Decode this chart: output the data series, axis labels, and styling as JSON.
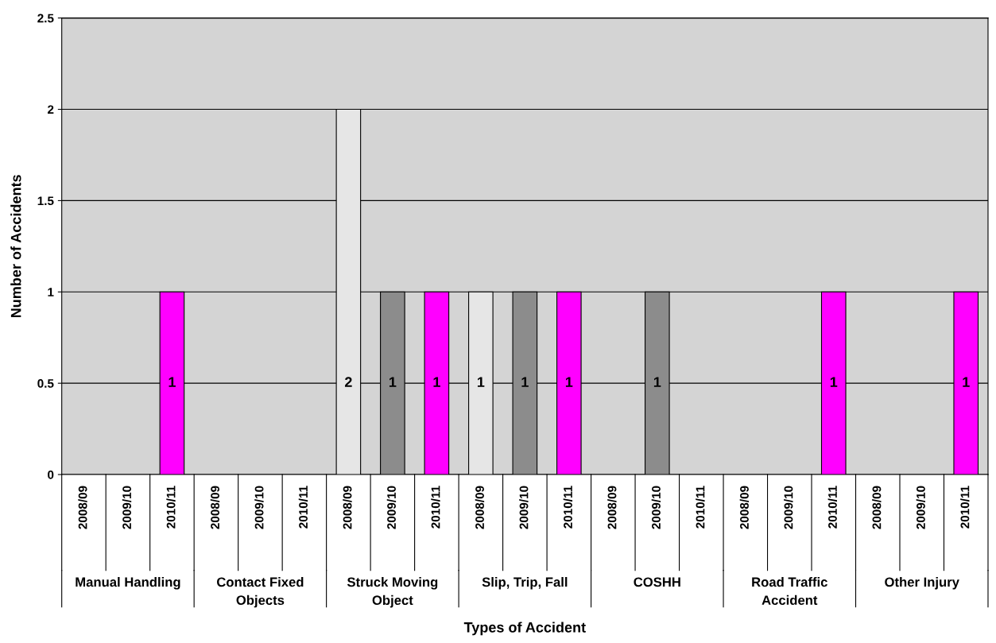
{
  "chart_data": {
    "type": "bar",
    "ylabel": "Number of Accidents",
    "categories": [
      "2008/09",
      "2009/10",
      "2010/11",
      "2008/09",
      "2009/10",
      "2010/11",
      "2008/09",
      "2009/10",
      "2010/11",
      "2008/09",
      "2009/10",
      "2010/11",
      "2008/09",
      "2009/10",
      "2010/11",
      "2008/09",
      "2009/10",
      "2010/11",
      "2008/09",
      "2009/10",
      "2010/11"
    ],
    "values": [
      0,
      0,
      1,
      0,
      0,
      0,
      2,
      1,
      1,
      1,
      1,
      1,
      0,
      1,
      0,
      0,
      0,
      1,
      0,
      0,
      1
    ],
    "value_labels": [
      null,
      null,
      "1",
      null,
      null,
      null,
      "2",
      "1",
      "1",
      "1",
      "1",
      "1",
      null,
      "1",
      null,
      null,
      null,
      "1",
      null,
      null,
      "1"
    ],
    "colors": [
      "#e6e6e6",
      "#8c8c8c",
      "#ff00ff",
      "#e6e6e6",
      "#8c8c8c",
      "#ff00ff",
      "#e6e6e6",
      "#8c8c8c",
      "#ff00ff",
      "#e6e6e6",
      "#8c8c8c",
      "#ff00ff",
      "#e6e6e6",
      "#8c8c8c",
      "#ff00ff",
      "#e6e6e6",
      "#8c8c8c",
      "#ff00ff",
      "#e6e6e6",
      "#8c8c8c",
      "#ff00ff"
    ],
    "annotations": [
      "Manual Handling",
      "Contact Fixed\nObjects",
      "Struck Moving\nObject",
      "Slip, Trip, Fall",
      "COSHH",
      "Road Traffic\nAccident",
      "Other Injury",
      "Types of Accident"
    ],
    "ylim": [
      0,
      2.5
    ],
    "yticks": [
      0,
      0.5,
      1,
      1.5,
      2,
      2.5
    ],
    "grid": "y",
    "legend": false
  }
}
